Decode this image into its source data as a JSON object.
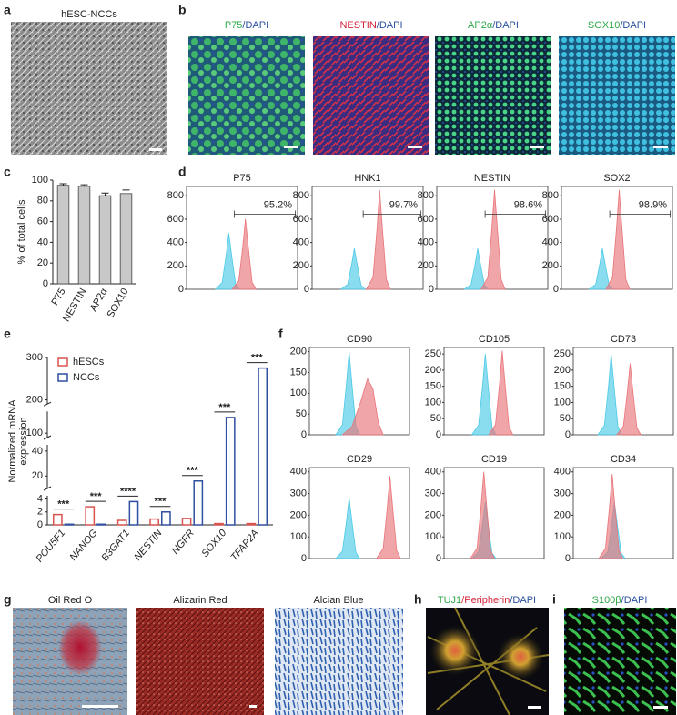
{
  "panels": {
    "a": {
      "letter": "a",
      "title": "hESC-NCCs"
    },
    "b": {
      "letter": "b",
      "images": [
        [
          "P75",
          "/DAPI"
        ],
        [
          "NESTIN",
          "/DAPI"
        ],
        [
          "AP2α",
          "/DAPI"
        ],
        [
          "SOX10",
          "/DAPI"
        ]
      ]
    },
    "c": {
      "letter": "c"
    },
    "d": {
      "letter": "d"
    },
    "e": {
      "letter": "e"
    },
    "f": {
      "letter": "f"
    },
    "g": {
      "letter": "g",
      "images": [
        "Oil Red O",
        "Alizarin Red",
        "Alcian Blue"
      ]
    },
    "h": {
      "letter": "h",
      "title": [
        "TUJ1",
        "/Peripherin",
        "/DAPI"
      ]
    },
    "i": {
      "letter": "i",
      "title": [
        "S100β",
        "/DAPI"
      ]
    }
  },
  "chart_data": [
    {
      "type": "bar",
      "ylabel": "% of total cells",
      "categories": [
        "P75",
        "NESTIN",
        "AP2α",
        "SOX10"
      ],
      "values": [
        95,
        94,
        85,
        87
      ],
      "errors": [
        1.5,
        1.5,
        2.5,
        3.5
      ],
      "color": "#c8c8c8",
      "ylim": [
        0,
        100
      ],
      "yticks": [
        0,
        20,
        40,
        60,
        80,
        100
      ]
    },
    {
      "type": "grouped_bar",
      "ylabel": [
        "Normalized mRNA",
        "expression"
      ],
      "categories": [
        "POU5F1",
        "NANOG",
        "B3GAT1",
        "NESTIN",
        "NGFR",
        "SOX10",
        "TFAP2A"
      ],
      "series": [
        {
          "name": "hESCs",
          "color": "#d9534f",
          "values": [
            1.6,
            2.8,
            0.7,
            0.9,
            1.0,
            0.2,
            0.2
          ]
        },
        {
          "name": "NCCs",
          "color": "#2f4f9f",
          "values": [
            0.1,
            0.1,
            3.6,
            2.0,
            16,
            118,
            275
          ]
        }
      ],
      "significance": [
        "***",
        "***",
        "****",
        "***",
        "***",
        "***",
        "***"
      ],
      "ysegments": [
        [
          0,
          4.5
        ],
        [
          10,
          45
        ],
        [
          95,
          125
        ],
        [
          190,
          300
        ]
      ],
      "ylim": [
        0,
        300
      ],
      "yticks": [
        0,
        2,
        4,
        20,
        40,
        100,
        200,
        300
      ]
    },
    {
      "type": "area",
      "title": "P75",
      "xscale": "log",
      "xlim": [
        10,
        1000000
      ],
      "ylim": [
        0,
        880
      ],
      "yticks": [
        0,
        200,
        400,
        600,
        800
      ],
      "gate": [
        1400,
        800000
      ],
      "gate_label": "95.2%",
      "series": [
        {
          "color": "#4cc9e6",
          "x": [
            200,
            400,
            600,
            800,
            1120,
            1600,
            2400
          ],
          "values": [
            0,
            58,
            288,
            480,
            264,
            48,
            0
          ]
        },
        {
          "color": "#e8747a",
          "x": [
            1125,
            2250,
            3375,
            4500,
            6300,
            9000,
            13500
          ],
          "values": [
            0,
            72,
            360,
            600,
            330,
            60,
            0
          ]
        }
      ]
    },
    {
      "type": "area",
      "title": "HNK1",
      "xscale": "log",
      "xlim": [
        10,
        1000000
      ],
      "ylim": [
        0,
        880
      ],
      "yticks": [
        0,
        200,
        400,
        600,
        800
      ],
      "gate": [
        2000,
        800000
      ],
      "gate_label": "99.7%",
      "series": [
        {
          "color": "#4cc9e6",
          "x": [
            200,
            400,
            600,
            800,
            1120,
            1600,
            2400
          ],
          "values": [
            0,
            42,
            210,
            350,
            193,
            35,
            0
          ]
        },
        {
          "color": "#e8747a",
          "x": [
            2750,
            5500,
            8250,
            11000,
            15400,
            22000,
            33000
          ],
          "values": [
            0,
            102,
            510,
            850,
            468,
            85,
            0
          ]
        }
      ]
    },
    {
      "type": "area",
      "title": "NESTIN",
      "xscale": "log",
      "xlim": [
        10,
        1000000
      ],
      "ylim": [
        0,
        880
      ],
      "yticks": [
        0,
        200,
        400,
        600,
        800
      ],
      "gate": [
        1500,
        800000
      ],
      "gate_label": "98.6%",
      "series": [
        {
          "color": "#4cc9e6",
          "x": [
            175,
            350,
            525,
            700,
            980,
            1400,
            2100
          ],
          "values": [
            0,
            42,
            210,
            350,
            193,
            35,
            0
          ]
        },
        {
          "color": "#e8747a",
          "x": [
            1000,
            2000,
            3000,
            4000,
            5600,
            8000,
            12000
          ],
          "values": [
            0,
            102,
            510,
            850,
            468,
            85,
            0
          ]
        }
      ]
    },
    {
      "type": "area",
      "title": "SOX2",
      "xscale": "log",
      "xlim": [
        10,
        1000000
      ],
      "ylim": [
        0,
        880
      ],
      "yticks": [
        0,
        200,
        400,
        600,
        800
      ],
      "gate": [
        1500,
        800000
      ],
      "gate_label": "98.9%",
      "series": [
        {
          "color": "#4cc9e6",
          "x": [
            175,
            350,
            525,
            700,
            980,
            1400,
            2100
          ],
          "values": [
            0,
            42,
            210,
            350,
            193,
            35,
            0
          ]
        },
        {
          "color": "#e8747a",
          "x": [
            1000,
            2000,
            3000,
            4000,
            5600,
            8000,
            12000
          ],
          "values": [
            0,
            102,
            510,
            850,
            468,
            85,
            0
          ]
        }
      ]
    },
    {
      "type": "area",
      "title": "CD90",
      "xscale": "log",
      "xlim": [
        10,
        300000
      ],
      "ylim": [
        0,
        210
      ],
      "yticks": [
        0,
        50,
        100,
        150,
        200
      ],
      "series": [
        {
          "color": "#4cc9e6",
          "x": [
            150,
            300,
            450,
            600,
            840,
            1200,
            1800
          ],
          "values": [
            0,
            24,
            120,
            200,
            110,
            20,
            0
          ]
        },
        {
          "color": "#e8747a",
          "x": [
            300,
            800,
            2000,
            4000,
            7000,
            12000,
            20000
          ],
          "values": [
            0,
            20,
            80,
            135,
            110,
            30,
            0
          ]
        }
      ]
    },
    {
      "type": "area",
      "title": "CD105",
      "xscale": "log",
      "xlim": [
        10,
        300000
      ],
      "ylim": [
        0,
        270
      ],
      "yticks": [
        0,
        50,
        100,
        150,
        200,
        250
      ],
      "series": [
        {
          "color": "#4cc9e6",
          "x": [
            175,
            350,
            525,
            700,
            980,
            1400,
            2100
          ],
          "values": [
            0,
            30,
            150,
            250,
            138,
            25,
            0
          ]
        },
        {
          "color": "#e8747a",
          "x": [
            1000,
            2000,
            3000,
            4000,
            5600,
            8000,
            12000
          ],
          "values": [
            0,
            31,
            156,
            260,
            143,
            26,
            0
          ]
        }
      ]
    },
    {
      "type": "area",
      "title": "CD73",
      "xscale": "log",
      "xlim": [
        10,
        300000
      ],
      "ylim": [
        0,
        270
      ],
      "yticks": [
        0,
        50,
        100,
        150,
        200,
        250
      ],
      "series": [
        {
          "color": "#4cc9e6",
          "x": [
            125,
            250,
            375,
            500,
            700,
            1000,
            1500
          ],
          "values": [
            0,
            30,
            150,
            250,
            138,
            25,
            0
          ]
        },
        {
          "color": "#e8747a",
          "x": [
            875,
            1750,
            2625,
            3500,
            4900,
            7000,
            10500
          ],
          "values": [
            0,
            26,
            132,
            220,
            121,
            22,
            0
          ]
        }
      ]
    },
    {
      "type": "area",
      "title": "CD29",
      "xscale": "log",
      "xlim": [
        10,
        300000
      ],
      "ylim": [
        0,
        420
      ],
      "yticks": [
        0,
        100,
        200,
        300,
        400
      ],
      "series": [
        {
          "color": "#4cc9e6",
          "x": [
            150,
            300,
            450,
            600,
            840,
            1200,
            1800
          ],
          "values": [
            0,
            34,
            168,
            280,
            154,
            28,
            0
          ]
        },
        {
          "color": "#e8747a",
          "x": [
            10000,
            20000,
            30000,
            40000,
            56000,
            80000,
            120000
          ],
          "values": [
            0,
            46,
            228,
            380,
            209,
            38,
            0
          ]
        }
      ]
    },
    {
      "type": "area",
      "title": "CD19",
      "xscale": "log",
      "xlim": [
        10,
        300000
      ],
      "ylim": [
        0,
        420
      ],
      "yticks": [
        0,
        100,
        200,
        300,
        400
      ],
      "series": [
        {
          "color": "#4cc9e6",
          "x": [
            175,
            350,
            525,
            700,
            980,
            1400,
            2100
          ],
          "values": [
            0,
            31,
            156,
            260,
            143,
            26,
            0
          ]
        },
        {
          "color": "#e8747a",
          "x": [
            150,
            300,
            450,
            600,
            840,
            1200,
            1800
          ],
          "values": [
            0,
            48,
            240,
            400,
            220,
            40,
            0
          ]
        }
      ]
    },
    {
      "type": "area",
      "title": "CD34",
      "xscale": "log",
      "xlim": [
        10,
        300000
      ],
      "ylim": [
        0,
        420
      ],
      "yticks": [
        0,
        100,
        200,
        300,
        400
      ],
      "series": [
        {
          "color": "#4cc9e6",
          "x": [
            175,
            350,
            525,
            700,
            980,
            1400,
            2100
          ],
          "values": [
            0,
            31,
            156,
            260,
            143,
            26,
            0
          ]
        },
        {
          "color": "#e8747a",
          "x": [
            138,
            275,
            413,
            550,
            770,
            1100,
            1650
          ],
          "values": [
            0,
            47,
            234,
            390,
            215,
            39,
            0
          ]
        }
      ]
    }
  ]
}
